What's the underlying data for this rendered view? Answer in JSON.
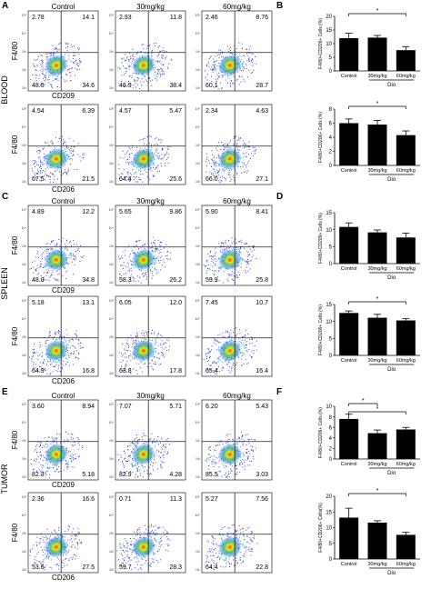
{
  "panel_letters": [
    "A",
    "B",
    "C",
    "D",
    "E",
    "F"
  ],
  "tissues": [
    "BLOOD",
    "SPLEEN",
    "TUMOR"
  ],
  "flow": {
    "column_headers": [
      "Control",
      "30mg/kg",
      "60mg/kg"
    ],
    "ytick_labels": [
      "10⁵",
      "10⁴",
      "10³",
      "10²",
      "10¹"
    ],
    "rows": [
      {
        "ylabel": "F4/80",
        "xlabel": "CD209",
        "plots": [
          [
            "2.78",
            "14.1",
            "48.5",
            "34.6"
          ],
          [
            "2.93",
            "11.8",
            "46.9",
            "38.4"
          ],
          [
            "2.46",
            "8.76",
            "60.1",
            "28.7"
          ]
        ]
      },
      {
        "ylabel": "F4/80",
        "xlabel": "CD206",
        "plots": [
          [
            "4.54",
            "6.39",
            "67.5",
            "21.5"
          ],
          [
            "4.57",
            "5.47",
            "64.4",
            "25.6"
          ],
          [
            "2.34",
            "4.63",
            "66.0",
            "27.1"
          ]
        ]
      },
      {
        "ylabel": "F4/80",
        "xlabel": "CD209",
        "plots": [
          [
            "4.89",
            "12.2",
            "48.0",
            "34.8"
          ],
          [
            "5.65",
            "9.86",
            "58.3",
            "26.2"
          ],
          [
            "5.90",
            "8.41",
            "59.9",
            "25.8"
          ]
        ]
      },
      {
        "ylabel": "F4/80",
        "xlabel": "CD206",
        "plots": [
          [
            "5.18",
            "13.1",
            "64.9",
            "16.8"
          ],
          [
            "6.05",
            "12.0",
            "63.8",
            "17.8"
          ],
          [
            "7.45",
            "10.7",
            "65.4",
            "16.4"
          ]
        ]
      },
      {
        "ylabel": "F4/80",
        "xlabel": "CD209",
        "plots": [
          [
            "3.60",
            "8.94",
            "82.3",
            "5.18"
          ],
          [
            "7.07",
            "5.71",
            "82.9",
            "4.28"
          ],
          [
            "6.20",
            "5.43",
            "85.5",
            "3.03"
          ]
        ]
      },
      {
        "ylabel": "F4/80",
        "xlabel": "CD206",
        "plots": [
          [
            "2.36",
            "16.6",
            "53.6",
            "27.5"
          ],
          [
            "0.71",
            "11.3",
            "59.7",
            "28.3"
          ],
          [
            "5.27",
            "7.56",
            "64.4",
            "22.8"
          ]
        ]
      }
    ]
  },
  "chart_data": [
    {
      "type": "bar",
      "categories": [
        "Control",
        "30mg/kg",
        "60mg/kg"
      ],
      "values": [
        12.0,
        12.2,
        7.6
      ],
      "errors": [
        1.8,
        0.8,
        1.3
      ],
      "ylabel": "F4/80+CD209+ Cells (%)",
      "ylim": [
        0,
        20
      ],
      "yticks": [
        "0",
        "5",
        "10",
        "15",
        "20"
      ],
      "group_label": "Dio",
      "sig": [
        {
          "from": 0,
          "to": 2,
          "label": "*"
        }
      ]
    },
    {
      "type": "bar",
      "categories": [
        "Control",
        "30mg/kg",
        "60mg/kg"
      ],
      "values": [
        6.0,
        5.8,
        4.3
      ],
      "errors": [
        0.6,
        0.6,
        0.6
      ],
      "ylabel": "F4/80+CD206+ Cells (%)",
      "ylim": [
        0,
        8
      ],
      "yticks": [
        "0",
        "2",
        "4",
        "6",
        "8"
      ],
      "group_label": "Dio",
      "sig": [
        {
          "from": 0,
          "to": 2,
          "label": "*"
        }
      ]
    },
    {
      "type": "bar",
      "categories": [
        "Control",
        "30mg/kg",
        "60mg/kg"
      ],
      "values": [
        10.8,
        9.2,
        7.7
      ],
      "errors": [
        1.2,
        0.7,
        1.3
      ],
      "ylabel": "F4/80+CD209+ Cells (%)",
      "ylim": [
        0,
        15
      ],
      "yticks": [
        "0",
        "5",
        "10",
        "15"
      ],
      "group_label": "Dio",
      "sig": []
    },
    {
      "type": "bar",
      "categories": [
        "Control",
        "30mg/kg",
        "60mg/kg"
      ],
      "values": [
        12.5,
        11.1,
        10.3
      ],
      "errors": [
        0.6,
        1.0,
        0.5
      ],
      "ylabel": "F4/80+CD206+ Cells (%)",
      "ylim": [
        0,
        15
      ],
      "yticks": [
        "0",
        "5",
        "10",
        "15"
      ],
      "group_label": "Dio",
      "sig": [
        {
          "from": 0,
          "to": 2,
          "label": "*"
        }
      ]
    },
    {
      "type": "bar",
      "categories": [
        "Control",
        "30mg/kg",
        "60mg/kg"
      ],
      "values": [
        7.6,
        4.9,
        5.6
      ],
      "errors": [
        0.9,
        0.6,
        0.4
      ],
      "ylabel": "F4/80+CD209+ Cells (%)",
      "ylim": [
        0,
        10
      ],
      "yticks": [
        "0",
        "2",
        "4",
        "6",
        "8",
        "10"
      ],
      "group_label": "Dio",
      "sig": [
        {
          "from": 0,
          "to": 1,
          "label": "*"
        },
        {
          "from": 0,
          "to": 2,
          "label": "*"
        }
      ]
    },
    {
      "type": "bar",
      "categories": [
        "Control",
        "30mg/kg",
        "60mg/kg"
      ],
      "values": [
        13.2,
        11.6,
        7.7
      ],
      "errors": [
        3.0,
        0.6,
        0.8
      ],
      "ylabel": "F4/80+CD206+ Cells(%)",
      "ylim": [
        0,
        20
      ],
      "yticks": [
        "0",
        "5",
        "10",
        "15",
        "20"
      ],
      "group_label": "Dio",
      "sig": [
        {
          "from": 0,
          "to": 2,
          "label": "*"
        }
      ]
    }
  ]
}
